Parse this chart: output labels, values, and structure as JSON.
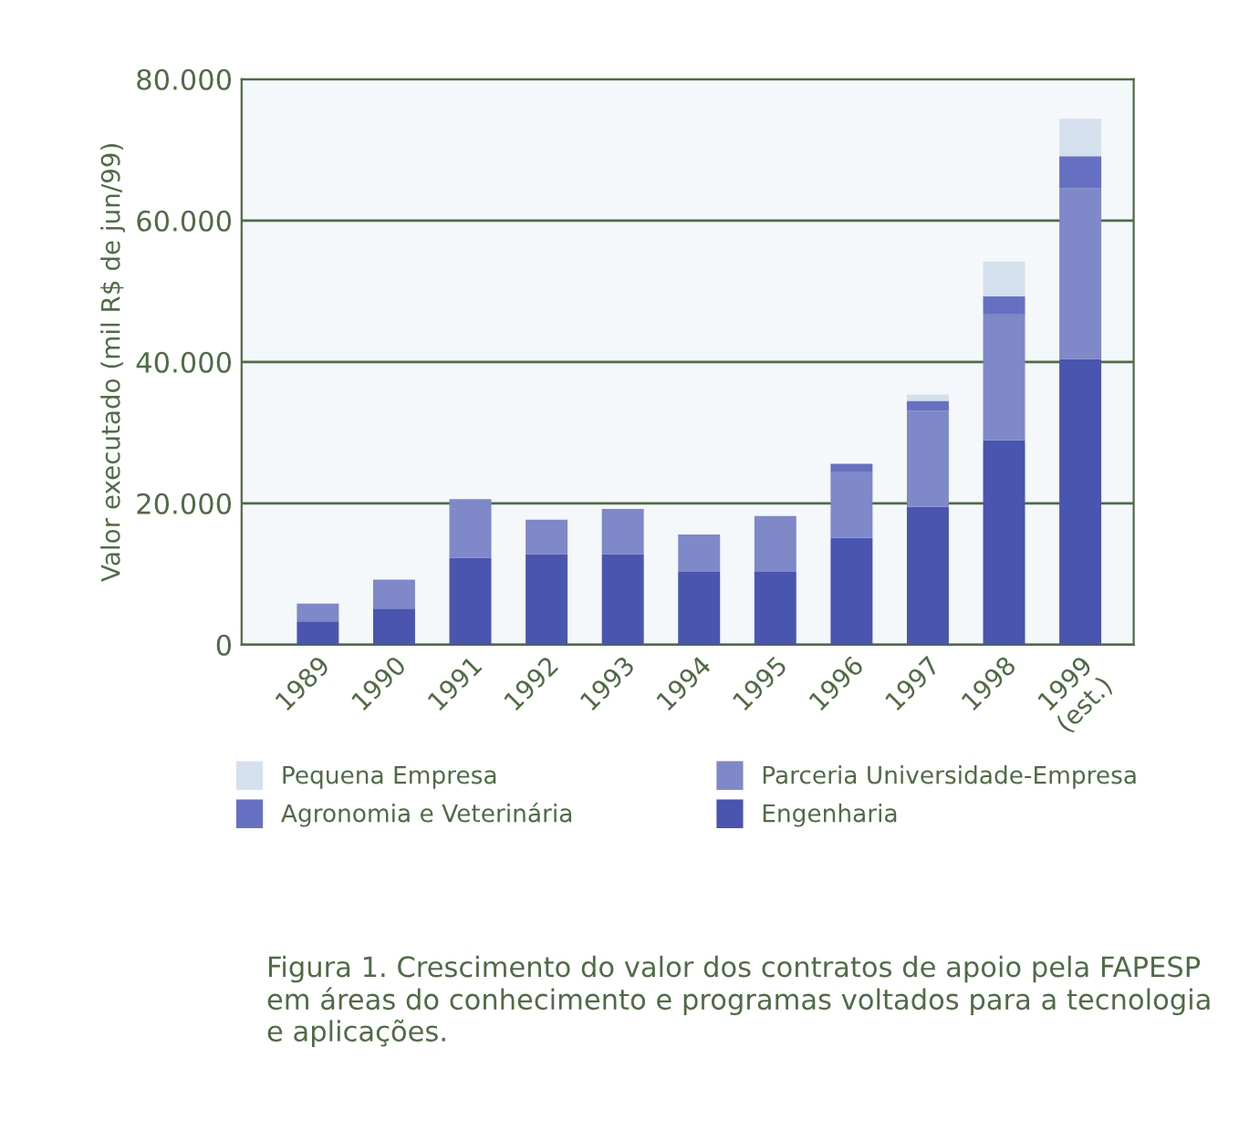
{
  "chart_data": {
    "type": "bar",
    "stacked": true,
    "ylabel": "Valor executado (mil R$ de jun/99)",
    "categories": [
      "1989",
      "1990",
      "1991",
      "1992",
      "1993",
      "1994",
      "1995",
      "1996",
      "1997",
      "1998",
      "1999\n(est.)"
    ],
    "series": [
      {
        "name": "Engenharia",
        "color": "#4a55b0",
        "values": [
          3300,
          5100,
          12300,
          12800,
          12800,
          10300,
          10300,
          15100,
          19500,
          28900,
          40400
        ]
      },
      {
        "name": "Parceria Universidade-Empresa",
        "color": "#7f88c8",
        "values": [
          2500,
          4100,
          8300,
          4900,
          6400,
          5300,
          7900,
          9300,
          13600,
          17900,
          24200
        ]
      },
      {
        "name": "Agronomia e Veterinária",
        "color": "#6670c2",
        "values": [
          0,
          0,
          0,
          0,
          0,
          0,
          0,
          1200,
          1400,
          2500,
          4500
        ]
      },
      {
        "name": "Pequena Empresa",
        "color": "#d5e0ee",
        "values": [
          0,
          0,
          0,
          0,
          0,
          0,
          0,
          0,
          900,
          4900,
          5300
        ]
      }
    ],
    "ylim": [
      0,
      80000
    ],
    "yticks": [
      {
        "value": 0,
        "label": "0"
      },
      {
        "value": 20000,
        "label": "20.000"
      },
      {
        "value": 40000,
        "label": "40.000"
      },
      {
        "value": 60000,
        "label": "60.000"
      },
      {
        "value": 80000,
        "label": "80.000"
      }
    ],
    "grid": "y",
    "legend": "bottom",
    "annotations": [
      "Figura 1. Crescimento do valor dos contratos de apoio pela FAPESP em áreas do conhecimento e programas voltados para a tecnologia e aplicações."
    ]
  }
}
